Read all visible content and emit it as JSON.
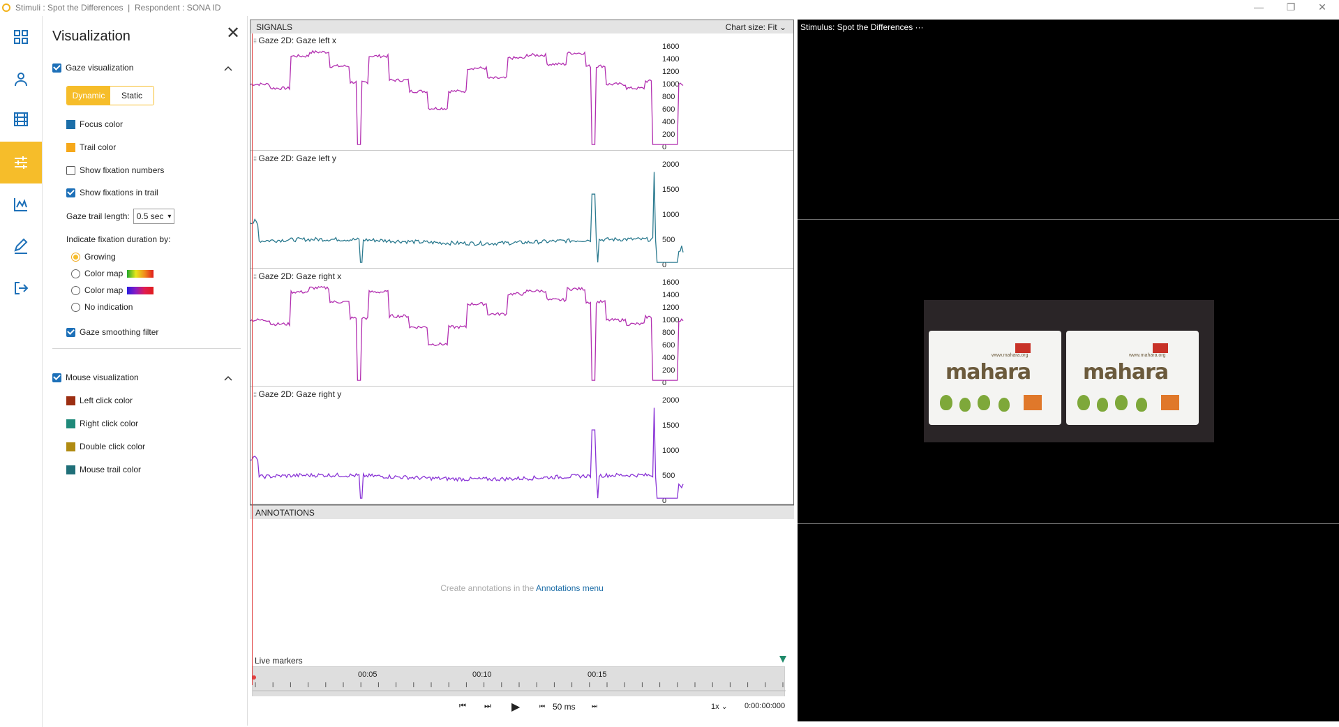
{
  "window": {
    "title": "Stimuli : Spot the Differences  |  Respondent : SONA ID",
    "minimize_glyph": "—",
    "restore_glyph": "❐",
    "close_glyph": "✕"
  },
  "rail": {
    "items": [
      {
        "icon": "dashboard-grid-icon"
      },
      {
        "icon": "person-icon"
      },
      {
        "icon": "film-icon"
      },
      {
        "icon": "sliders-icon",
        "active": true
      },
      {
        "icon": "line-chart-icon"
      },
      {
        "icon": "pencil-icon"
      },
      {
        "icon": "exit-icon"
      }
    ]
  },
  "visualization": {
    "title": "Visualization",
    "close_glyph": "✕",
    "gaze_section": "Gaze visualization",
    "mode_dynamic": "Dynamic",
    "mode_static": "Static",
    "focus_color": "Focus color",
    "trail_color": "Trail color",
    "show_fixation_numbers": "Show fixation numbers",
    "show_fixations_in_trail": "Show fixations in trail",
    "gaze_trail_length_label": "Gaze trail length:",
    "gaze_trail_length_value": "0.5 sec",
    "indicate_label": "Indicate fixation duration by:",
    "radio_growing": "Growing",
    "radio_colormap1": "Color map",
    "radio_colormap2": "Color map",
    "radio_none": "No indication",
    "gaze_smoothing": "Gaze smoothing filter",
    "mouse_section": "Mouse visualization",
    "left_click_color": "Left click color",
    "right_click_color": "Right click color",
    "double_click_color": "Double click color",
    "mouse_trail_color": "Mouse trail color",
    "colors": {
      "focus": "#1b6ea8",
      "trail": "#f6a81a",
      "left_click": "#9c2e12",
      "right_click": "#1f8a7a",
      "double_click": "#b08b12",
      "mouse_trail": "#1f6f78"
    }
  },
  "signals": {
    "header": "SIGNALS",
    "chart_size": "Chart size:  Fit  ⌄"
  },
  "chart_data": [
    {
      "type": "line",
      "title": "Gaze 2D: Gaze left x",
      "color": "#b22fb0",
      "ylim": [
        0,
        1600
      ],
      "yticks": [
        "1600",
        "1400",
        "1200",
        "1000",
        "800",
        "600",
        "400",
        "200",
        "0"
      ]
    },
    {
      "type": "line",
      "title": "Gaze 2D: Gaze left y",
      "color": "#2b7a8f",
      "ylim": [
        0,
        2000
      ],
      "yticks": [
        "2000",
        "1500",
        "1000",
        "500",
        "0"
      ]
    },
    {
      "type": "line",
      "title": "Gaze 2D: Gaze right x",
      "color": "#b22fb0",
      "ylim": [
        0,
        1600
      ],
      "yticks": [
        "1600",
        "1400",
        "1200",
        "1000",
        "800",
        "600",
        "400",
        "200",
        "0"
      ]
    },
    {
      "type": "line",
      "title": "Gaze 2D: Gaze right y",
      "color": "#8a35d6",
      "ylim": [
        0,
        2000
      ],
      "yticks": [
        "2000",
        "1500",
        "1000",
        "500",
        "0"
      ]
    }
  ],
  "annotations": {
    "header": "ANNOTATIONS",
    "msg_prefix": "Create annotations in the",
    "msg_link": "Annotations menu",
    "live_markers": "Live markers"
  },
  "timeline": {
    "labels": [
      "00:05",
      "00:10",
      "00:15"
    ]
  },
  "transport": {
    "prev": "⏮",
    "next": "⏭",
    "play": "▶",
    "step_back": "⏮",
    "step": "50 ms",
    "step_fwd": "⏭",
    "speed": "1x  ⌄",
    "time": "0:00:00:000"
  },
  "stimulus": {
    "title": "Stimulus: Spot the Differences  ···",
    "brand_left": "mahara",
    "brand_right": "mahara",
    "url_left": "www.mahara.org",
    "url_right": "www.mahara.org"
  }
}
